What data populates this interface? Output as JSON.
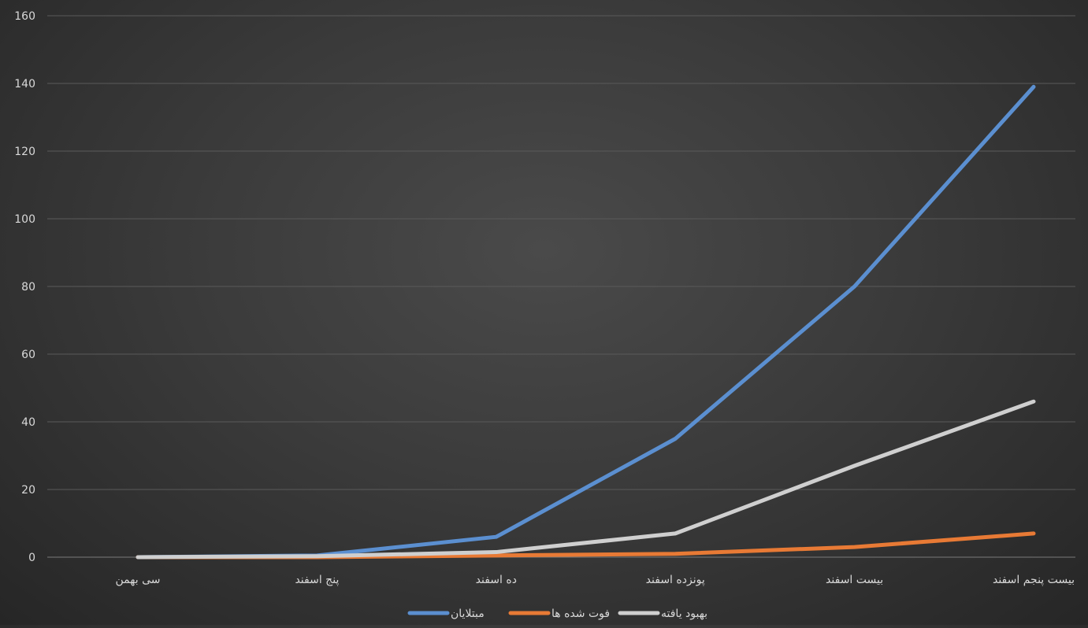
{
  "chart_data": {
    "type": "line",
    "title": "",
    "xlabel": "",
    "ylabel": "",
    "categories": [
      "سی بهمن",
      "پنج اسفند",
      "ده اسفند",
      "پونزده اسفند",
      "بیست اسفند",
      "بیست پنجم اسفند"
    ],
    "ylim": [
      0,
      160
    ],
    "yticks": [
      0,
      20,
      40,
      60,
      80,
      100,
      120,
      140,
      160
    ],
    "grid": true,
    "legend_position": "bottom",
    "series": [
      {
        "name": "مبتلایان",
        "color": "#5b8fd0",
        "values": [
          0,
          0.5,
          6,
          35,
          80,
          139
        ]
      },
      {
        "name": "فوت شده ها",
        "color": "#e87a35",
        "values": [
          0,
          0,
          0.5,
          1,
          3,
          7
        ]
      },
      {
        "name": "بهبود یافته",
        "color": "#cfcfcf",
        "values": [
          0,
          0.3,
          1.5,
          7,
          27,
          46
        ]
      }
    ]
  }
}
